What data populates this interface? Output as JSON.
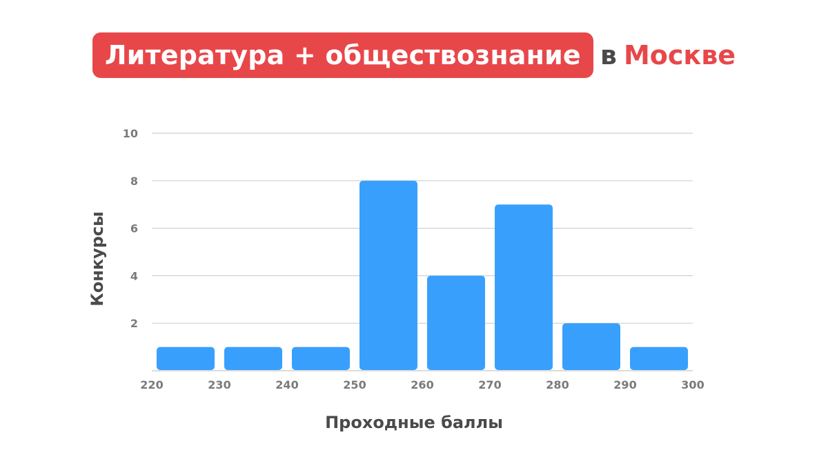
{
  "title": {
    "highlight": "Литература + обществознание",
    "conjunction": "в",
    "city": "Москве"
  },
  "colors": {
    "accent": "#e8474a",
    "bar": "#38a0fc",
    "grid": "#cfcfcf",
    "text": "#4a4a4a",
    "tick": "#7a7a7a"
  },
  "chart_data": {
    "type": "bar",
    "xlabel": "Проходные баллы",
    "ylabel": "Конкурсы",
    "bins": [
      {
        "from": 220,
        "to": 230,
        "value": 1
      },
      {
        "from": 230,
        "to": 240,
        "value": 1
      },
      {
        "from": 240,
        "to": 250,
        "value": 1
      },
      {
        "from": 250,
        "to": 260,
        "value": 8
      },
      {
        "from": 260,
        "to": 270,
        "value": 4
      },
      {
        "from": 270,
        "to": 280,
        "value": 7
      },
      {
        "from": 280,
        "to": 290,
        "value": 2
      },
      {
        "from": 290,
        "to": 300,
        "value": 1
      }
    ],
    "xticks": [
      220,
      230,
      240,
      250,
      260,
      270,
      280,
      290,
      300
    ],
    "yticks": [
      2,
      4,
      6,
      8,
      10
    ],
    "xlim": [
      220,
      300
    ],
    "ylim": [
      0,
      10
    ],
    "grid": true
  }
}
